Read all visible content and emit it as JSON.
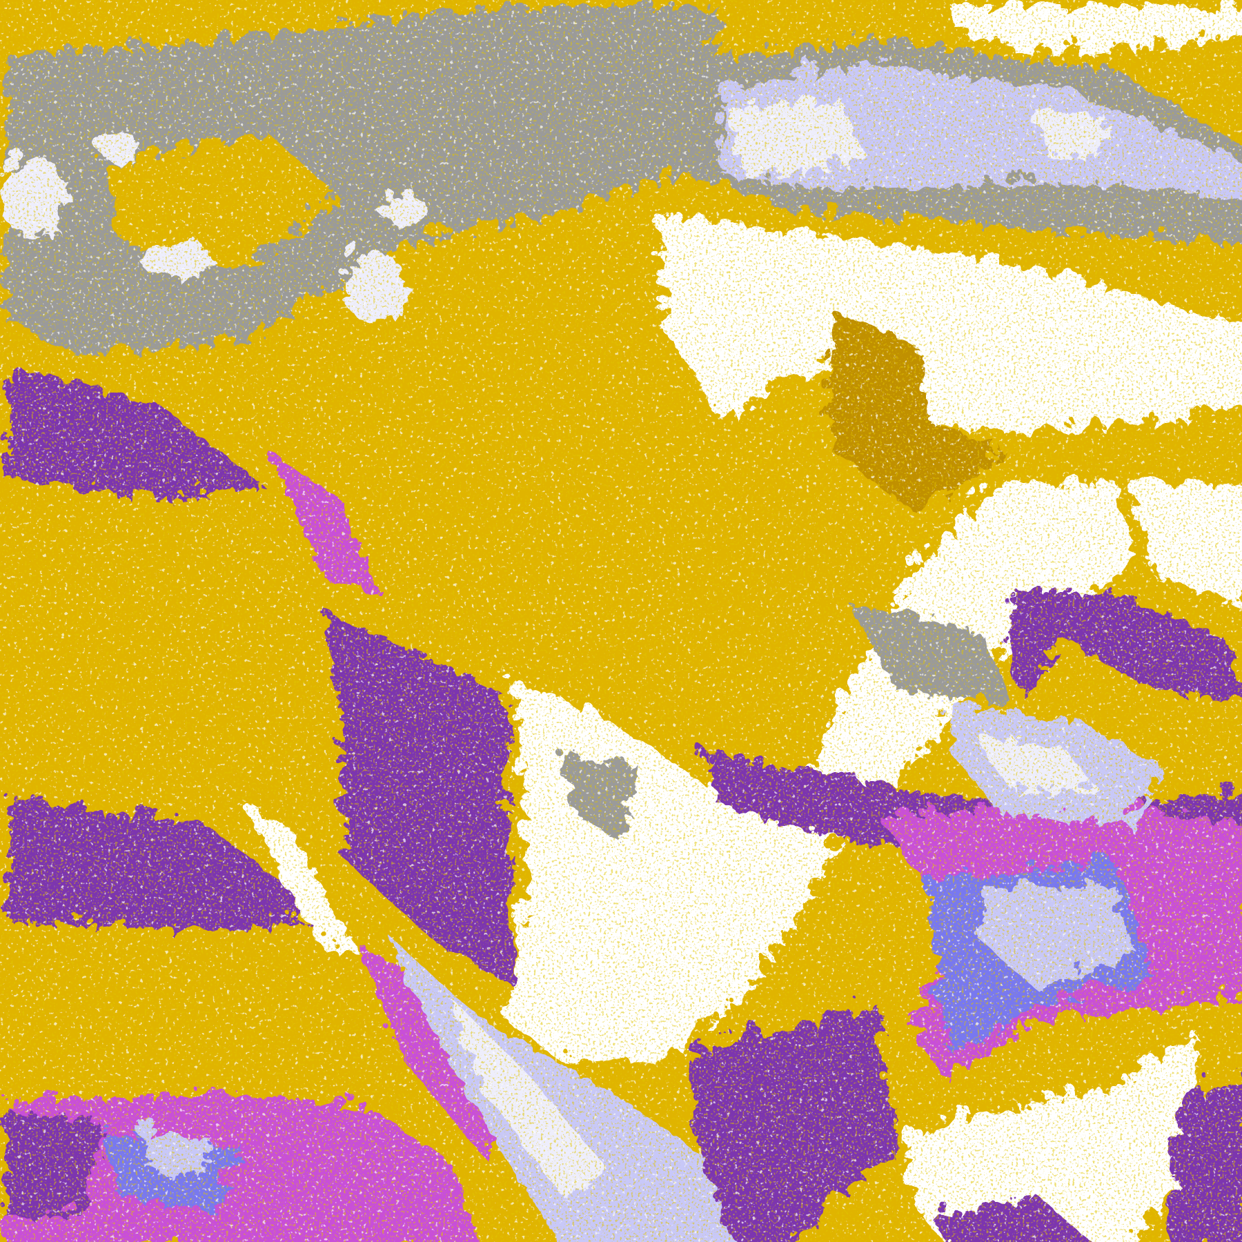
{
  "map": {
    "palette": {
      "gold": "#E0B400",
      "dark_gold": "#C09000",
      "purple": "#7B35AF",
      "magenta": "#C850D8",
      "blue": "#7878F0",
      "lavender": "#C8C8F8",
      "pale": "#EEEEFC",
      "gray": "#9A9A9A",
      "white": "#FFFFFF"
    }
  }
}
